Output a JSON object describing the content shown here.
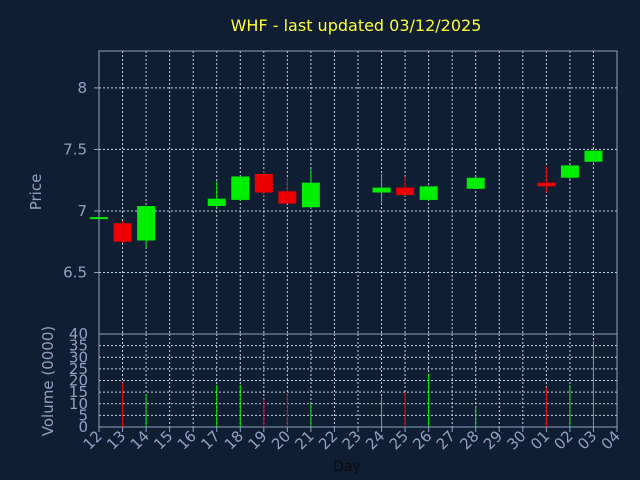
{
  "chart_data": {
    "type": "candlestick",
    "title": "WHF - last updated 03/12/2025",
    "xlabel": "Day",
    "ylabel_price": "Price",
    "ylabel_volume": "Volume (0000)",
    "x_tick_labels": [
      "12",
      "13",
      "14",
      "15",
      "16",
      "17",
      "18",
      "19",
      "20",
      "21",
      "22",
      "23",
      "24",
      "25",
      "26",
      "27",
      "28",
      "29",
      "30",
      "01",
      "02",
      "03",
      "04"
    ],
    "price_ticks": [
      "6.5",
      "7",
      "7.5",
      "8"
    ],
    "price_ylim": [
      6.0,
      8.3
    ],
    "volume_ticks": [
      "0",
      "5",
      "10",
      "15",
      "20",
      "25",
      "30",
      "35",
      "40"
    ],
    "volume_ylim": [
      0,
      40
    ],
    "candles": [
      {
        "day": "12",
        "open": 6.95,
        "high": 6.95,
        "low": 6.95,
        "close": 6.95,
        "volume": 0
      },
      {
        "day": "13",
        "open": 6.9,
        "high": 6.92,
        "low": 6.74,
        "close": 6.75,
        "volume": 19
      },
      {
        "day": "14",
        "open": 6.76,
        "high": 7.04,
        "low": 6.7,
        "close": 7.04,
        "volume": 14
      },
      {
        "day": "17",
        "open": 7.04,
        "high": 7.24,
        "low": 7.02,
        "close": 7.1,
        "volume": 18
      },
      {
        "day": "18",
        "open": 7.09,
        "high": 7.28,
        "low": 7.08,
        "close": 7.28,
        "volume": 18
      },
      {
        "day": "19",
        "open": 7.3,
        "high": 7.33,
        "low": 7.12,
        "close": 7.15,
        "volume": 12
      },
      {
        "day": "20",
        "open": 7.16,
        "high": 7.27,
        "low": 7.06,
        "close": 7.06,
        "volume": 15
      },
      {
        "day": "21",
        "open": 7.03,
        "high": 7.34,
        "low": 7.02,
        "close": 7.23,
        "volume": 10
      },
      {
        "day": "24",
        "open": 7.15,
        "high": 7.3,
        "low": 7.07,
        "close": 7.19,
        "volume": 13
      },
      {
        "day": "25",
        "open": 7.19,
        "high": 7.28,
        "low": 7.12,
        "close": 7.13,
        "volume": 15
      },
      {
        "day": "26",
        "open": 7.09,
        "high": 7.2,
        "low": 7.08,
        "close": 7.2,
        "volume": 23
      },
      {
        "day": "28",
        "open": 7.18,
        "high": 7.28,
        "low": 7.18,
        "close": 7.27,
        "volume": 9
      },
      {
        "day": "01",
        "open": 7.23,
        "high": 7.36,
        "low": 7.15,
        "close": 7.2,
        "volume": 17
      },
      {
        "day": "02",
        "open": 7.27,
        "high": 7.37,
        "low": 7.26,
        "close": 7.37,
        "volume": 18
      },
      {
        "day": "03",
        "open": 7.4,
        "high": 7.5,
        "low": 7.38,
        "close": 7.49,
        "volume": 37
      }
    ],
    "up_color": "#00ee00",
    "down_color": "#ee0000",
    "grid": true
  }
}
